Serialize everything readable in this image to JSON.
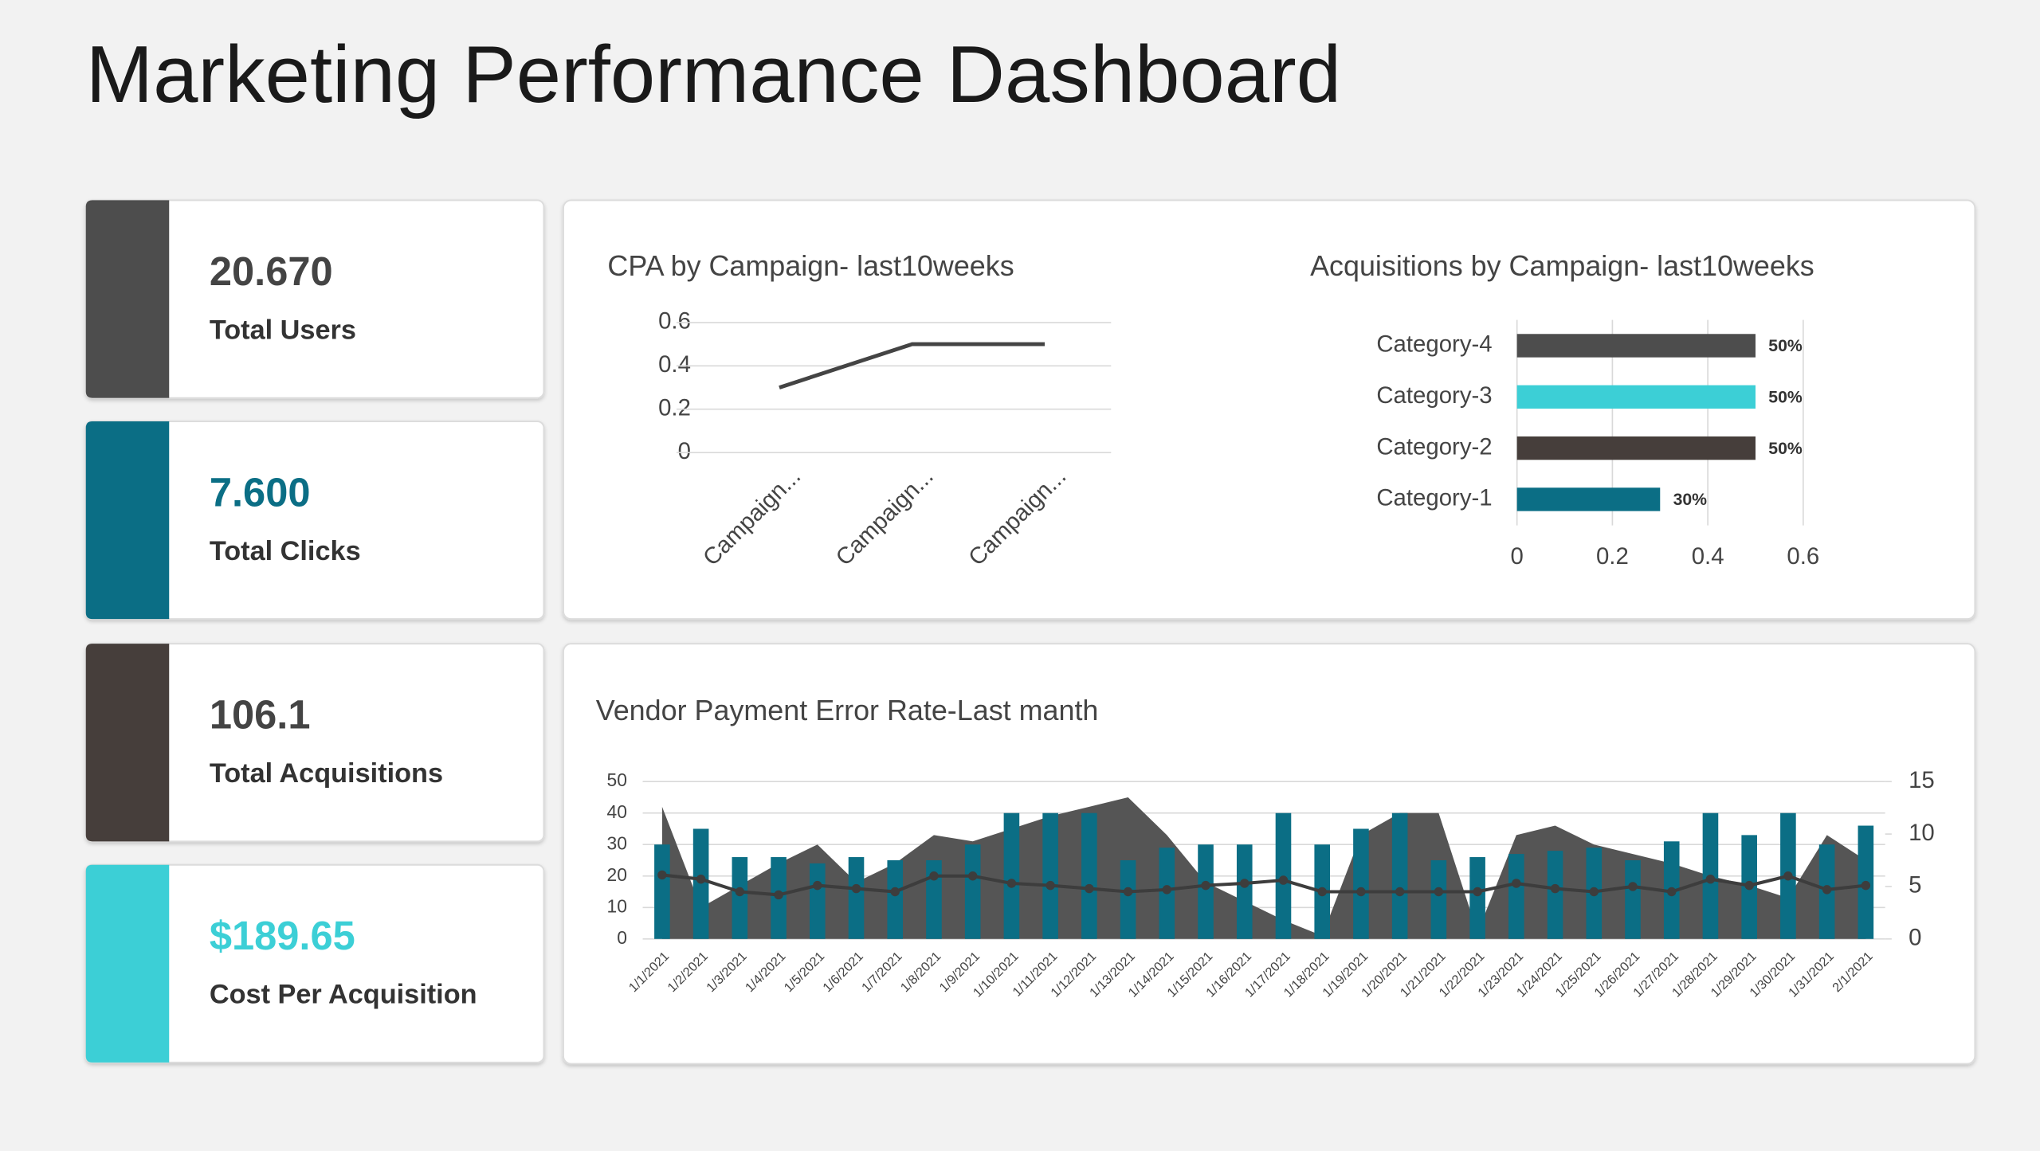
{
  "title": "Marketing Performance Dashboard",
  "kpis": [
    {
      "value": "20.670",
      "label": "Total Users",
      "color": "#4d4d4d",
      "value_color": "#444444"
    },
    {
      "value": "7.600",
      "label": "Total Clicks",
      "color": "#0b6e85",
      "value_color": "#0b6e85"
    },
    {
      "value": "106.1",
      "label": "Total Acquisitions",
      "color": "#463e3b",
      "value_color": "#444444"
    },
    {
      "value": "$189.65",
      "label": "Cost Per Acquisition",
      "color": "#3ccfd6",
      "value_color": "#3ccfd6"
    }
  ],
  "chart_data": [
    {
      "type": "line",
      "title": "CPA by Campaign- last10weeks",
      "categories": [
        "Campaign...",
        "Campaign...",
        "Campaign..."
      ],
      "values": [
        0.3,
        0.5,
        0.5
      ],
      "color": "#444444",
      "ylim": [
        0,
        0.6
      ],
      "yticks": [
        0,
        0.2,
        0.4,
        0.6
      ],
      "grid": true
    },
    {
      "type": "barh",
      "title": "Acquisitions by Campaign- last10weeks",
      "categories": [
        "Category-1",
        "Category-2",
        "Category-3",
        "Category-4"
      ],
      "values": [
        0.3,
        0.5,
        0.5,
        0.5
      ],
      "value_labels": [
        "30%",
        "50%",
        "50%",
        "50%"
      ],
      "colors": [
        "#0b6e85",
        "#463e3b",
        "#3ccfd6",
        "#4d4d4d"
      ],
      "xlim": [
        0,
        0.6
      ],
      "xticks": [
        0,
        0.2,
        0.4,
        0.6
      ],
      "grid": true
    },
    {
      "type": "combo",
      "title": "Vendor Payment Error Rate-Last manth",
      "categories": [
        "1/1/2021",
        "1/2/2021",
        "1/3/2021",
        "1/4/2021",
        "1/5/2021",
        "1/6/2021",
        "1/7/2021",
        "1/8/2021",
        "1/9/2021",
        "1/10/2021",
        "1/11/2021",
        "1/12/2021",
        "1/13/2021",
        "1/14/2021",
        "1/15/2021",
        "1/16/2021",
        "1/17/2021",
        "1/18/2021",
        "1/19/2021",
        "1/20/2021",
        "1/21/2021",
        "1/22/2021",
        "1/23/2021",
        "1/24/2021",
        "1/25/2021",
        "1/26/2021",
        "1/27/2021",
        "1/28/2021",
        "1/29/2021",
        "1/30/2021",
        "1/31/2021",
        "2/1/2021"
      ],
      "series": [
        {
          "type": "area",
          "color": "#555555",
          "values": [
            42,
            10,
            17,
            24,
            30,
            18,
            24,
            33,
            31,
            35,
            39,
            42,
            45,
            33,
            18,
            12,
            6,
            1,
            33,
            40,
            40,
            2,
            33,
            36,
            30,
            27,
            24,
            20,
            17,
            13,
            33,
            25
          ]
        },
        {
          "type": "bar",
          "color": "#0b6e85",
          "values": [
            30,
            35,
            26,
            26,
            24,
            26,
            25,
            25,
            30,
            40,
            40,
            40,
            25,
            29,
            30,
            30,
            40,
            30,
            35,
            40,
            25,
            26,
            27,
            28,
            29,
            25,
            31,
            40,
            33,
            40,
            30,
            36
          ]
        },
        {
          "type": "line",
          "axis": "y2",
          "color": "#3d3d3d",
          "values": [
            6.1,
            5.7,
            4.5,
            4.2,
            5.1,
            4.8,
            4.5,
            6,
            6,
            5.3,
            5.1,
            4.8,
            4.5,
            4.7,
            5.1,
            5.3,
            5.6,
            4.5,
            4.5,
            4.5,
            4.5,
            4.5,
            5.3,
            4.8,
            4.5,
            5,
            4.5,
            5.7,
            5.1,
            6,
            4.7,
            5.1
          ]
        }
      ],
      "ylim": [
        0,
        50
      ],
      "yticks": [
        0,
        10,
        20,
        30,
        40,
        50
      ],
      "y2lim": [
        0,
        15
      ],
      "y2ticks": [
        0,
        5,
        10,
        15
      ],
      "grid": true
    }
  ]
}
